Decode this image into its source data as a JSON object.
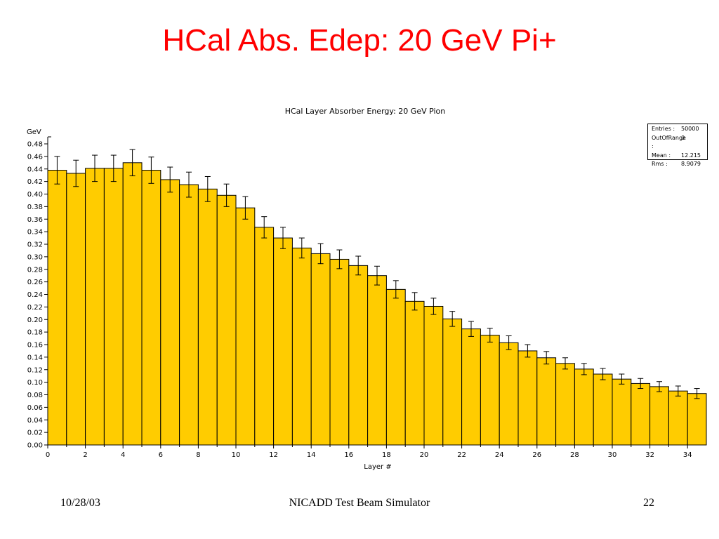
{
  "slide": {
    "title": "HCal Abs. Edep: 20 GeV Pi+",
    "footer_date": "10/28/03",
    "footer_center": "NICADD Test Beam Simulator",
    "footer_page": "22"
  },
  "stats": [
    {
      "label": "Entries :",
      "value": "50000"
    },
    {
      "label": "OutOfRange :",
      "value": "0"
    },
    {
      "label": "Mean :",
      "value": "12.215"
    },
    {
      "label": "Rms :",
      "value": "8.9079"
    }
  ],
  "colors": {
    "bar_fill": "#ffcc00",
    "bar_stroke": "#000000",
    "title": "#ff0000"
  },
  "chart_data": {
    "type": "bar",
    "title": "HCal Layer Absorber Energy: 20 GeV Pion",
    "xlabel": "Layer #",
    "ylabel": "GeV",
    "xlim": [
      0,
      35
    ],
    "ylim": [
      0,
      0.48
    ],
    "xticks": [
      0,
      2,
      4,
      6,
      8,
      10,
      12,
      14,
      16,
      18,
      20,
      22,
      24,
      26,
      28,
      30,
      32,
      34
    ],
    "ytick_step": 0.02,
    "bin_width": 1,
    "values": [
      0.438,
      0.433,
      0.441,
      0.441,
      0.45,
      0.438,
      0.423,
      0.415,
      0.408,
      0.398,
      0.378,
      0.347,
      0.33,
      0.314,
      0.305,
      0.296,
      0.286,
      0.27,
      0.248,
      0.229,
      0.221,
      0.201,
      0.185,
      0.175,
      0.163,
      0.15,
      0.139,
      0.13,
      0.121,
      0.113,
      0.105,
      0.098,
      0.093,
      0.086,
      0.082
    ],
    "errors": [
      0.022,
      0.021,
      0.021,
      0.021,
      0.021,
      0.021,
      0.02,
      0.02,
      0.02,
      0.018,
      0.018,
      0.017,
      0.017,
      0.016,
      0.016,
      0.015,
      0.015,
      0.015,
      0.014,
      0.014,
      0.013,
      0.012,
      0.012,
      0.011,
      0.011,
      0.01,
      0.01,
      0.009,
      0.009,
      0.009,
      0.008,
      0.008,
      0.008,
      0.008,
      0.008
    ],
    "grid": false,
    "legend": "none"
  }
}
